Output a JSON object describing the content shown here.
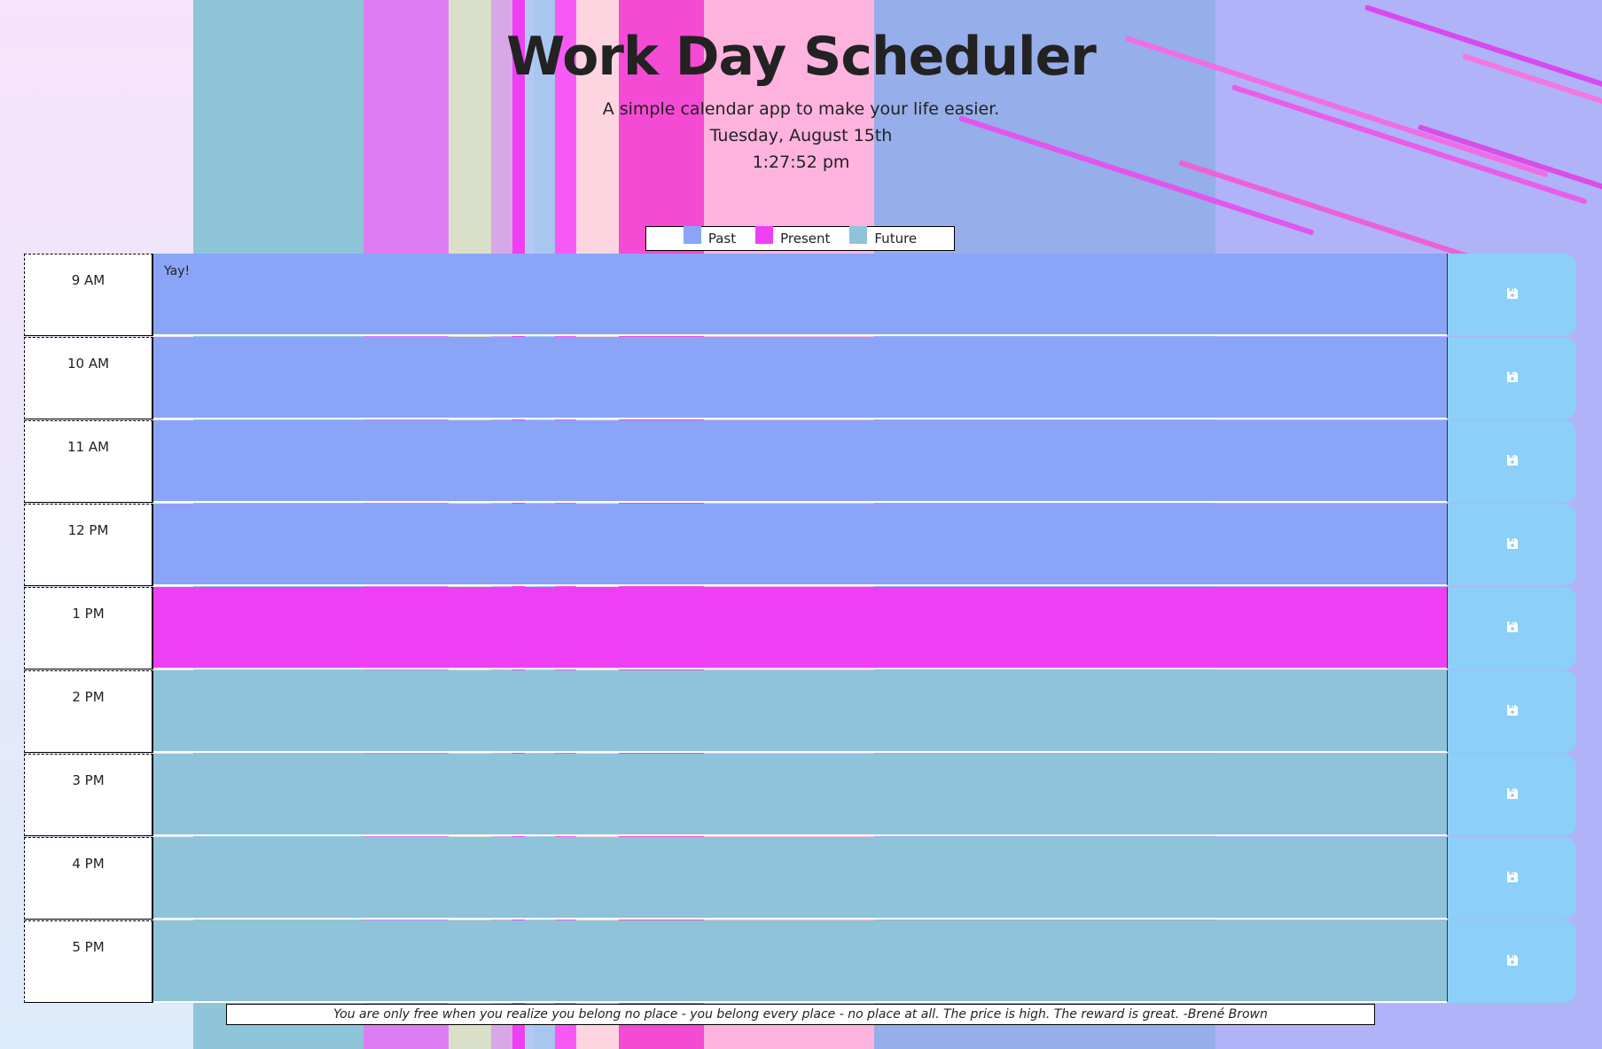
{
  "header": {
    "title": "Work Day Scheduler",
    "subtitle": "A simple calendar app to make your life easier.",
    "date": "Tuesday, August 15th",
    "time": "1:27:52 pm"
  },
  "legend": [
    {
      "label": "Past",
      "color": "#8aa5f8"
    },
    {
      "label": "Present",
      "color": "#ee3ff5"
    },
    {
      "label": "Future",
      "color": "#8fc3da"
    }
  ],
  "hours": [
    {
      "label": "9 AM",
      "text": "Yay!",
      "state": "past"
    },
    {
      "label": "10 AM",
      "text": "",
      "state": "past"
    },
    {
      "label": "11 AM",
      "text": "",
      "state": "past"
    },
    {
      "label": "12 PM",
      "text": "",
      "state": "past"
    },
    {
      "label": "1 PM",
      "text": "",
      "state": "present"
    },
    {
      "label": "2 PM",
      "text": "",
      "state": "future"
    },
    {
      "label": "3 PM",
      "text": "",
      "state": "future"
    },
    {
      "label": "4 PM",
      "text": "",
      "state": "future"
    },
    {
      "label": "5 PM",
      "text": "",
      "state": "future"
    }
  ],
  "save_icon": "floppy-disk-icon",
  "quote": "You are only free when you realize you belong no place - you belong every place - no place at all. The price is high. The reward is great. -Brené Brown",
  "colors": {
    "save_button": "#8ccff8",
    "save_icon": "#ffffff"
  }
}
